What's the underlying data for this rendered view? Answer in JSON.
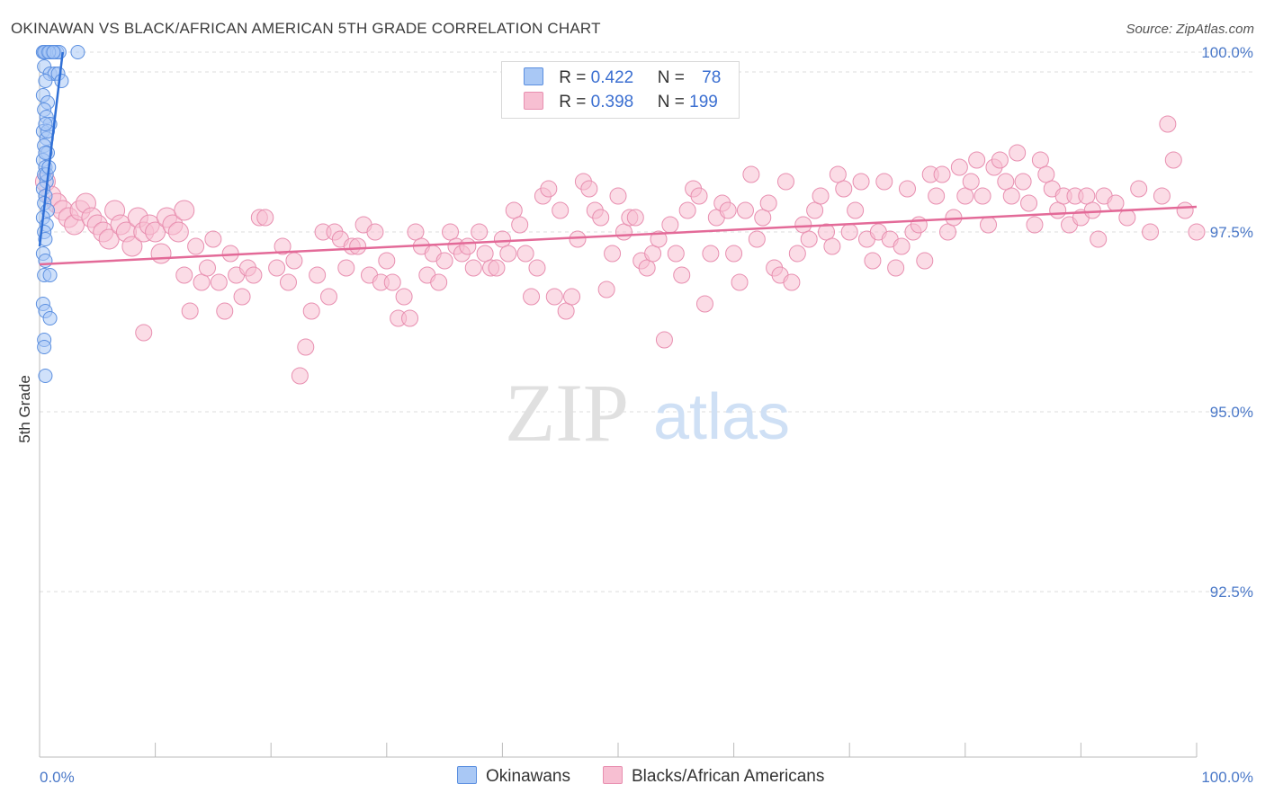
{
  "title": "OKINAWAN VS BLACK/AFRICAN AMERICAN 5TH GRADE CORRELATION CHART",
  "source": "Source: ZipAtlas.com",
  "watermark": {
    "zip": "ZIP",
    "atlas": "atlas"
  },
  "legend": {
    "rows": [
      {
        "r_label": "R = ",
        "r_value": "0.422",
        "n_label": "N = ",
        "n_value": "78"
      },
      {
        "r_label": "R = ",
        "r_value": "0.398",
        "n_label": "N = ",
        "n_value": "199"
      }
    ]
  },
  "bottom_legend": [
    "Okinawans",
    "Blacks/African Americans"
  ],
  "colors": {
    "blue_fill": "#a9c8f5",
    "blue_stroke": "#5b8fe0",
    "blue_line": "#2f6fd6",
    "pink_fill": "#f7bfd2",
    "pink_stroke": "#e88fb0",
    "pink_line": "#e36a98",
    "tick_text": "#4a78c8",
    "grid": "#dcdcdc"
  },
  "chart_data": {
    "type": "scatter",
    "title": "OKINAWAN VS BLACK/AFRICAN AMERICAN 5TH GRADE CORRELATION CHART",
    "xlabel": "",
    "ylabel": "5th Grade",
    "xlim": [
      0,
      100
    ],
    "ylim": [
      90.2,
      100.2
    ],
    "x_tick_labels": [
      "0.0%",
      "100.0%"
    ],
    "y_ticks": [
      92.5,
      95.0,
      97.5,
      100.0
    ],
    "y_tick_labels": [
      "92.5%",
      "95.0%",
      "97.5%",
      "100.0%"
    ],
    "series": [
      {
        "name": "Okinawans",
        "R": 0.422,
        "N": 78,
        "trend": {
          "x": [
            0,
            2
          ],
          "y": [
            97.3,
            100.0
          ]
        },
        "points": [
          [
            0.3,
            100
          ],
          [
            0.5,
            100
          ],
          [
            0.7,
            100
          ],
          [
            0.9,
            100
          ],
          [
            1.1,
            100
          ],
          [
            1.3,
            100
          ],
          [
            1.5,
            100
          ],
          [
            1.7,
            100
          ],
          [
            3.3,
            100
          ],
          [
            0.4,
            100
          ],
          [
            0.8,
            100
          ],
          [
            1.2,
            100
          ],
          [
            0.4,
            99.8
          ],
          [
            0.9,
            99.7
          ],
          [
            1.3,
            99.7
          ],
          [
            1.6,
            99.7
          ],
          [
            0.5,
            99.6
          ],
          [
            1.9,
            99.6
          ],
          [
            0.3,
            99.4
          ],
          [
            0.7,
            99.3
          ],
          [
            0.4,
            99.2
          ],
          [
            0.6,
            99.1
          ],
          [
            0.9,
            99.0
          ],
          [
            0.3,
            98.9
          ],
          [
            0.6,
            98.8
          ],
          [
            0.4,
            98.7
          ],
          [
            0.7,
            98.6
          ],
          [
            0.3,
            98.5
          ],
          [
            0.5,
            98.4
          ],
          [
            0.4,
            98.3
          ],
          [
            0.6,
            98.2
          ],
          [
            0.3,
            98.1
          ],
          [
            0.5,
            98.0
          ],
          [
            0.4,
            97.9
          ],
          [
            0.7,
            97.8
          ],
          [
            0.3,
            97.7
          ],
          [
            0.6,
            97.6
          ],
          [
            0.4,
            97.5
          ],
          [
            0.5,
            97.4
          ],
          [
            0.3,
            97.2
          ],
          [
            0.5,
            97.1
          ],
          [
            0.4,
            96.9
          ],
          [
            0.9,
            96.9
          ],
          [
            0.3,
            96.5
          ],
          [
            0.5,
            96.4
          ],
          [
            0.9,
            96.3
          ],
          [
            0.4,
            96.0
          ],
          [
            0.4,
            95.9
          ],
          [
            0.5,
            95.5
          ],
          [
            0.6,
            98.3
          ],
          [
            0.8,
            98.4
          ],
          [
            0.5,
            98.6
          ],
          [
            0.7,
            98.9
          ],
          [
            0.5,
            99.0
          ]
        ]
      },
      {
        "name": "Blacks/African Americans",
        "R": 0.398,
        "N": 199,
        "trend": {
          "x": [
            0,
            100
          ],
          "y": [
            97.05,
            97.85
          ]
        },
        "points": [
          [
            0.5,
            98.2
          ],
          [
            1,
            98.0
          ],
          [
            1.5,
            97.9
          ],
          [
            2,
            97.8
          ],
          [
            2.5,
            97.7
          ],
          [
            3,
            97.6
          ],
          [
            3.5,
            97.8
          ],
          [
            4,
            97.9
          ],
          [
            4.5,
            97.7
          ],
          [
            5,
            97.6
          ],
          [
            5.5,
            97.5
          ],
          [
            6,
            97.4
          ],
          [
            6.5,
            97.8
          ],
          [
            7,
            97.6
          ],
          [
            7.5,
            97.5
          ],
          [
            8,
            97.3
          ],
          [
            8.5,
            97.7
          ],
          [
            9,
            97.5
          ],
          [
            9.5,
            97.6
          ],
          [
            10,
            97.5
          ],
          [
            10.5,
            97.2
          ],
          [
            11,
            97.7
          ],
          [
            11.5,
            97.6
          ],
          [
            12,
            97.5
          ],
          [
            12.5,
            97.8
          ],
          [
            9,
            96.1
          ],
          [
            12.5,
            96.9
          ],
          [
            13,
            96.4
          ],
          [
            13.5,
            97.3
          ],
          [
            14,
            96.8
          ],
          [
            14.5,
            97.0
          ],
          [
            15,
            97.4
          ],
          [
            15.5,
            96.8
          ],
          [
            16,
            96.4
          ],
          [
            16.5,
            97.2
          ],
          [
            17,
            96.9
          ],
          [
            17.5,
            96.6
          ],
          [
            18,
            97.0
          ],
          [
            18.5,
            96.9
          ],
          [
            19,
            97.7
          ],
          [
            19.5,
            97.7
          ],
          [
            20.5,
            97.0
          ],
          [
            21,
            97.3
          ],
          [
            21.5,
            96.8
          ],
          [
            22,
            97.1
          ],
          [
            22.5,
            95.5
          ],
          [
            23,
            95.9
          ],
          [
            23.5,
            96.4
          ],
          [
            24,
            96.9
          ],
          [
            24.5,
            97.5
          ],
          [
            25,
            96.6
          ],
          [
            25.5,
            97.5
          ],
          [
            26,
            97.4
          ],
          [
            26.5,
            97.0
          ],
          [
            27,
            97.3
          ],
          [
            27.5,
            97.3
          ],
          [
            28,
            97.6
          ],
          [
            28.5,
            96.9
          ],
          [
            29,
            97.5
          ],
          [
            29.5,
            96.8
          ],
          [
            30,
            97.1
          ],
          [
            30.5,
            96.8
          ],
          [
            31,
            96.3
          ],
          [
            31.5,
            96.6
          ],
          [
            32,
            96.3
          ],
          [
            32.5,
            97.5
          ],
          [
            33,
            97.3
          ],
          [
            33.5,
            96.9
          ],
          [
            34,
            97.2
          ],
          [
            34.5,
            96.8
          ],
          [
            35,
            97.1
          ],
          [
            35.5,
            97.5
          ],
          [
            36,
            97.3
          ],
          [
            36.5,
            97.2
          ],
          [
            37,
            97.3
          ],
          [
            37.5,
            97.0
          ],
          [
            38,
            97.5
          ],
          [
            38.5,
            97.2
          ],
          [
            39,
            97.0
          ],
          [
            39.5,
            97.0
          ],
          [
            40,
            97.4
          ],
          [
            40.5,
            97.2
          ],
          [
            41,
            97.8
          ],
          [
            41.5,
            97.6
          ],
          [
            42,
            97.2
          ],
          [
            42.5,
            96.6
          ],
          [
            43,
            97.0
          ],
          [
            43.5,
            98.0
          ],
          [
            44,
            98.1
          ],
          [
            44.5,
            96.6
          ],
          [
            45,
            97.8
          ],
          [
            45.5,
            96.4
          ],
          [
            46,
            96.6
          ],
          [
            46.5,
            97.4
          ],
          [
            47,
            98.2
          ],
          [
            47.5,
            98.1
          ],
          [
            48,
            97.8
          ],
          [
            48.5,
            97.7
          ],
          [
            49,
            96.7
          ],
          [
            49.5,
            97.2
          ],
          [
            50,
            98.0
          ],
          [
            50.5,
            97.5
          ],
          [
            51,
            97.7
          ],
          [
            51.5,
            97.7
          ],
          [
            52,
            97.1
          ],
          [
            52.5,
            97.0
          ],
          [
            53,
            97.2
          ],
          [
            53.5,
            97.4
          ],
          [
            54,
            96.0
          ],
          [
            54.5,
            97.6
          ],
          [
            55,
            97.2
          ],
          [
            55.5,
            96.9
          ],
          [
            56,
            97.8
          ],
          [
            56.5,
            98.1
          ],
          [
            57,
            98.0
          ],
          [
            57.5,
            96.5
          ],
          [
            58,
            97.2
          ],
          [
            58.5,
            97.7
          ],
          [
            59,
            97.9
          ],
          [
            59.5,
            97.8
          ],
          [
            60,
            97.2
          ],
          [
            60.5,
            96.8
          ],
          [
            61,
            97.8
          ],
          [
            61.5,
            98.3
          ],
          [
            62,
            97.4
          ],
          [
            62.5,
            97.7
          ],
          [
            63,
            97.9
          ],
          [
            63.5,
            97.0
          ],
          [
            64,
            96.9
          ],
          [
            64.5,
            98.2
          ],
          [
            65,
            96.8
          ],
          [
            65.5,
            97.2
          ],
          [
            66,
            97.6
          ],
          [
            66.5,
            97.4
          ],
          [
            67,
            97.8
          ],
          [
            67.5,
            98.0
          ],
          [
            68,
            97.5
          ],
          [
            68.5,
            97.3
          ],
          [
            69,
            98.3
          ],
          [
            69.5,
            98.1
          ],
          [
            70,
            97.5
          ],
          [
            70.5,
            97.8
          ],
          [
            71,
            98.2
          ],
          [
            71.5,
            97.4
          ],
          [
            72,
            97.1
          ],
          [
            72.5,
            97.5
          ],
          [
            73,
            98.2
          ],
          [
            73.5,
            97.4
          ],
          [
            74,
            97.0
          ],
          [
            74.5,
            97.3
          ],
          [
            75,
            98.1
          ],
          [
            75.5,
            97.5
          ],
          [
            76,
            97.6
          ],
          [
            76.5,
            97.1
          ],
          [
            77,
            98.3
          ],
          [
            77.5,
            98.0
          ],
          [
            78,
            98.3
          ],
          [
            78.5,
            97.5
          ],
          [
            79,
            97.7
          ],
          [
            79.5,
            98.4
          ],
          [
            80,
            98.0
          ],
          [
            80.5,
            98.2
          ],
          [
            81,
            98.5
          ],
          [
            81.5,
            98.0
          ],
          [
            82,
            97.6
          ],
          [
            82.5,
            98.4
          ],
          [
            83,
            98.5
          ],
          [
            83.5,
            98.2
          ],
          [
            84,
            98.0
          ],
          [
            84.5,
            98.6
          ],
          [
            85,
            98.2
          ],
          [
            85.5,
            97.9
          ],
          [
            86,
            97.6
          ],
          [
            86.5,
            98.5
          ],
          [
            87,
            98.3
          ],
          [
            87.5,
            98.1
          ],
          [
            88,
            97.8
          ],
          [
            88.5,
            98.0
          ],
          [
            89,
            97.6
          ],
          [
            89.5,
            98.0
          ],
          [
            90,
            97.7
          ],
          [
            90.5,
            98.0
          ],
          [
            91,
            97.8
          ],
          [
            91.5,
            97.4
          ],
          [
            92,
            98.0
          ],
          [
            93,
            97.9
          ],
          [
            94,
            97.7
          ],
          [
            95,
            98.1
          ],
          [
            96,
            97.5
          ],
          [
            97,
            98.0
          ],
          [
            97.5,
            99.0
          ],
          [
            98,
            98.5
          ],
          [
            99,
            97.8
          ],
          [
            100,
            97.5
          ]
        ]
      }
    ]
  }
}
